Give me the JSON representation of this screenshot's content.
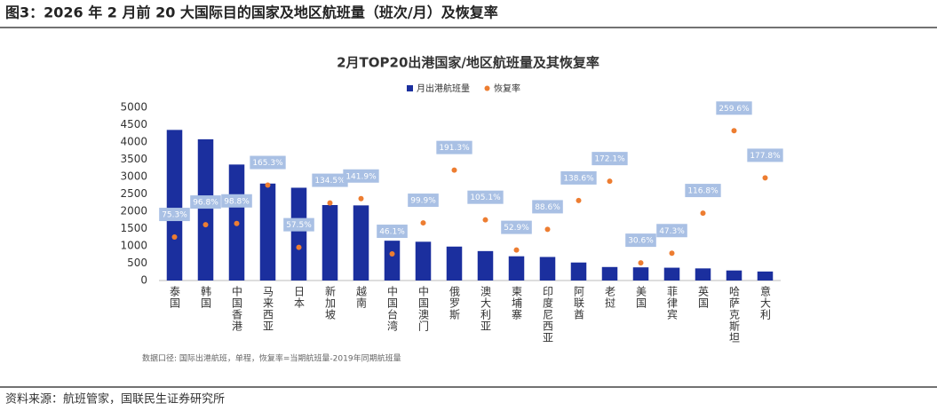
{
  "header": {
    "title": "图3：2026 年 2 月前 20 大国际目的国家及地区航班量（班次/月）及恢复率"
  },
  "chart_data": {
    "type": "bar",
    "title": "2月TOP20出港国家/地区航班量及其恢复率",
    "categories": [
      "泰国",
      "韩国",
      "中国香港",
      "马来西亚",
      "日本",
      "新加坡",
      "越南",
      "中国台湾",
      "中国澳门",
      "俄罗斯",
      "澳大利亚",
      "柬埔寨",
      "印度尼西亚",
      "阿联酋",
      "老挝",
      "美国",
      "菲律宾",
      "英国",
      "哈萨克斯坦",
      "意大利"
    ],
    "series": [
      {
        "name": "月出港航班量",
        "type": "bar",
        "color": "#1b2f9e",
        "values": [
          4350,
          4080,
          3350,
          2800,
          2680,
          2180,
          2170,
          1150,
          1120,
          980,
          850,
          700,
          680,
          520,
          390,
          380,
          370,
          350,
          290,
          260
        ]
      },
      {
        "name": "恢复率",
        "type": "scatter",
        "color": "#ed7d31",
        "axis": "y2",
        "values": [
          75.3,
          96.8,
          98.8,
          165.3,
          57.5,
          134.5,
          141.9,
          46.1,
          99.9,
          191.3,
          105.1,
          52.9,
          88.6,
          138.6,
          172.1,
          30.6,
          47.3,
          116.8,
          259.6,
          177.8
        ],
        "value_labels": [
          "75.3%",
          "96.8%",
          "98.8%",
          "165.3%",
          "57.5%",
          "134.5%",
          "141.9%",
          "46.1%",
          "99.9%",
          "191.3%",
          "105.1%",
          "52.9%",
          "88.6%",
          "138.6%",
          "172.1%",
          "30.6%",
          "47.3%",
          "116.8%",
          "259.6%",
          "177.8%"
        ]
      }
    ],
    "ylim": [
      0,
      5000
    ],
    "yticks": [
      0,
      500,
      1000,
      1500,
      2000,
      2500,
      3000,
      3500,
      4000,
      4500,
      5000
    ],
    "y2lim": [
      0,
      300
    ],
    "note": "数据口径: 国际出港航班，单程，恢复率=当期航班量-2019年同期航班量"
  },
  "source": "资料来源：航班管家，国联民生证券研究所"
}
